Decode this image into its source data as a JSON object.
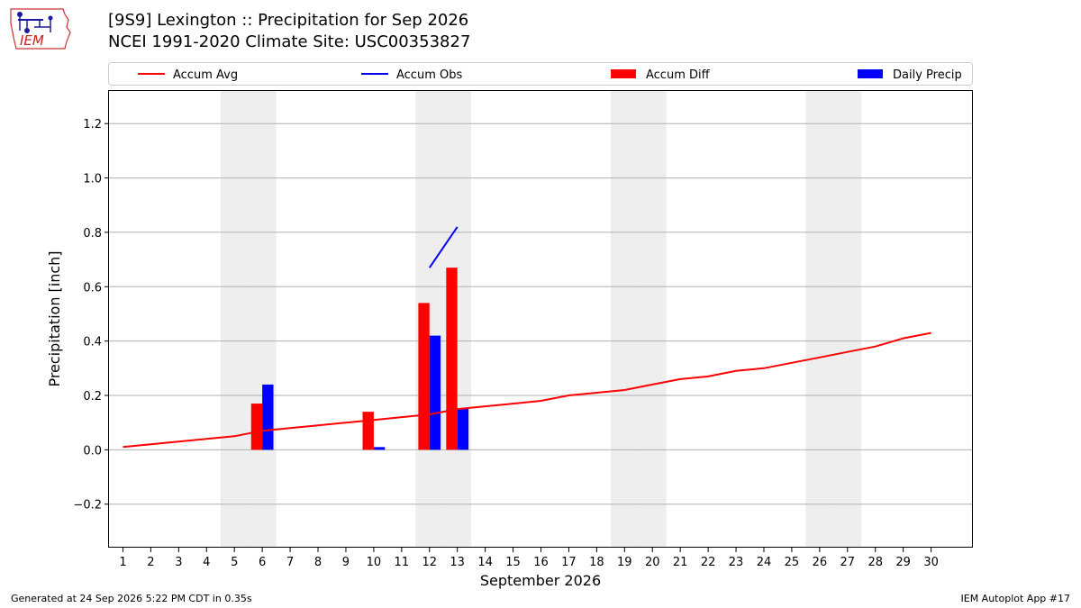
{
  "header": {
    "title_line1": "[9S9] Lexington :: Precipitation for Sep 2026",
    "title_line2": "NCEI 1991-2020 Climate Site: USC00353827",
    "logo_text": "IEM"
  },
  "footer": {
    "generated": "Generated at 24 Sep 2026 5:22 PM CDT in 0.35s",
    "app": "IEM Autoplot App #17"
  },
  "colors": {
    "avg": "#ff0000",
    "obs": "#0000ff",
    "diff": "#ff0000",
    "daily": "#0000ff",
    "weekend": "#eeeeee",
    "grid": "#b0b0b0"
  },
  "chart_data": {
    "type": "bar",
    "xlabel": "September 2026",
    "ylabel": "Precipitation [inch]",
    "xlim": [
      0.5,
      31.5
    ],
    "ylim": [
      -0.36,
      1.32
    ],
    "yticks": [
      -0.2,
      0.0,
      0.2,
      0.4,
      0.6,
      0.8,
      1.0,
      1.2
    ],
    "ytick_labels": [
      "−0.2",
      "0.0",
      "0.2",
      "0.4",
      "0.6",
      "0.8",
      "1.0",
      "1.2"
    ],
    "x": [
      1,
      2,
      3,
      4,
      5,
      6,
      7,
      8,
      9,
      10,
      11,
      12,
      13,
      14,
      15,
      16,
      17,
      18,
      19,
      20,
      21,
      22,
      23,
      24,
      25,
      26,
      27,
      28,
      29,
      30
    ],
    "weekend_days": [
      5,
      6,
      12,
      13,
      19,
      20,
      26,
      27
    ],
    "grid": true,
    "legend_placement": "top",
    "legend": [
      {
        "label": "Accum Avg",
        "kind": "line",
        "series": "accum_avg"
      },
      {
        "label": "Accum Obs",
        "kind": "line",
        "series": "accum_obs"
      },
      {
        "label": "Accum Diff",
        "kind": "bar",
        "series": "accum_diff"
      },
      {
        "label": "Daily Precip",
        "kind": "bar",
        "series": "daily_precip"
      }
    ],
    "series": [
      {
        "name": "Accum Avg",
        "id": "accum_avg",
        "kind": "line",
        "x": [
          1,
          2,
          3,
          4,
          5,
          6,
          7,
          8,
          9,
          10,
          11,
          12,
          13,
          14,
          15,
          16,
          17,
          18,
          19,
          20,
          21,
          22,
          23,
          24,
          25,
          26,
          27,
          28,
          29,
          30
        ],
        "values": [
          0.01,
          0.02,
          0.03,
          0.04,
          0.05,
          0.07,
          0.08,
          0.09,
          0.1,
          0.11,
          0.12,
          0.13,
          0.15,
          0.16,
          0.17,
          0.18,
          0.2,
          0.21,
          0.22,
          0.24,
          0.26,
          0.27,
          0.29,
          0.3,
          0.32,
          0.34,
          0.36,
          0.38,
          0.41,
          0.43
        ]
      },
      {
        "name": "Accum Obs",
        "id": "accum_obs",
        "kind": "line",
        "x": [
          12,
          13
        ],
        "values": [
          0.67,
          0.82
        ]
      },
      {
        "name": "Accum Diff",
        "id": "accum_diff",
        "kind": "bar",
        "x": [
          6,
          10,
          12,
          13
        ],
        "values": [
          0.17,
          0.14,
          0.54,
          0.67
        ]
      },
      {
        "name": "Daily Precip",
        "id": "daily_precip",
        "kind": "bar",
        "x": [
          6,
          10,
          12,
          13
        ],
        "values": [
          0.24,
          0.01,
          0.42,
          0.15
        ]
      }
    ]
  }
}
